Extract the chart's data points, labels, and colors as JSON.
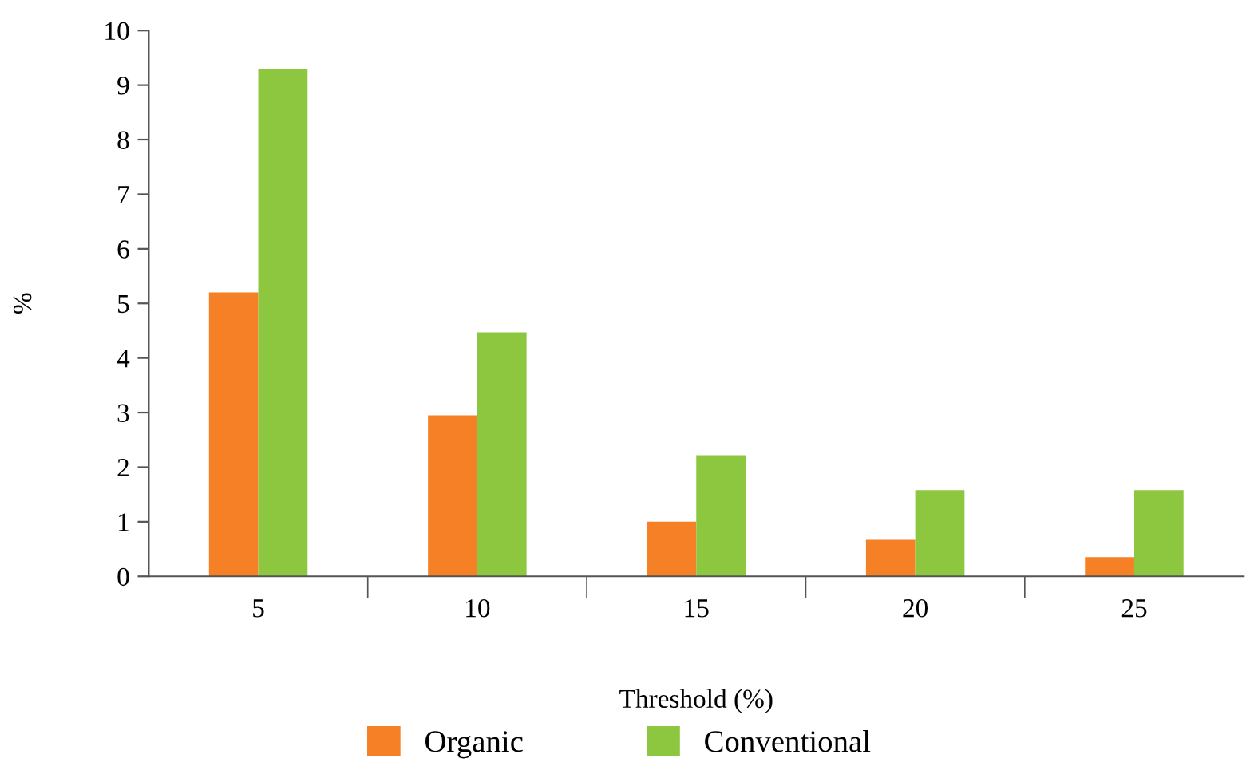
{
  "chart_data": {
    "type": "bar",
    "xlabel": "Threshold (%)",
    "ylabel": "%",
    "categories": [
      "5",
      "10",
      "15",
      "20",
      "25"
    ],
    "series": [
      {
        "name": "Organic",
        "color": "#f58025",
        "values": [
          5.2,
          2.95,
          1.0,
          0.67,
          0.35
        ]
      },
      {
        "name": "Conventional",
        "color": "#8dc63f",
        "values": [
          9.3,
          4.47,
          2.22,
          1.58,
          1.58
        ]
      }
    ],
    "ylim": [
      0,
      10
    ],
    "yticks": [
      0,
      1,
      2,
      3,
      4,
      5,
      6,
      7,
      8,
      9,
      10
    ],
    "grid": false,
    "legend": "bottom"
  }
}
